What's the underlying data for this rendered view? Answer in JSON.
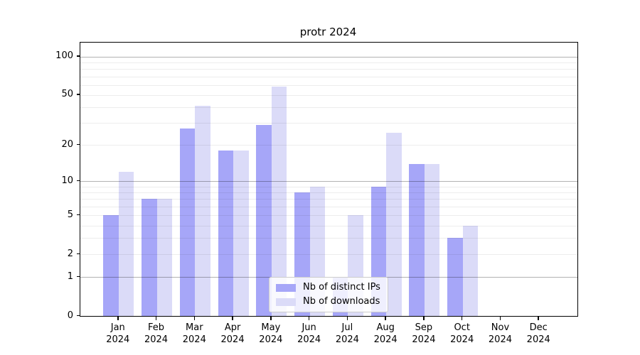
{
  "title": "protr 2024",
  "legend": {
    "items": [
      {
        "label": "Nb of distinct IPs",
        "color": "#a6a6f8"
      },
      {
        "label": "Nb of downloads",
        "color": "#dbdbf8"
      }
    ]
  },
  "chart_data": {
    "type": "bar",
    "title": "protr 2024",
    "categories": [
      "Jan",
      "Feb",
      "Mar",
      "Apr",
      "May",
      "Jun",
      "Jul",
      "Aug",
      "Sep",
      "Oct",
      "Nov",
      "Dec"
    ],
    "year": "2024",
    "series": [
      {
        "name": "Nb of distinct IPs",
        "color": "#a6a6f8",
        "values": [
          5,
          7,
          27,
          18,
          29,
          8,
          1,
          9,
          14,
          3,
          0,
          0
        ]
      },
      {
        "name": "Nb of downloads",
        "color": "#dbdbf8",
        "values": [
          12,
          7,
          41,
          18,
          58,
          9,
          5,
          25,
          14,
          4,
          0,
          0
        ]
      }
    ],
    "xlabel": "",
    "ylabel": "",
    "yscale": "log1p",
    "ylim": [
      0,
      128.5
    ],
    "ytick_values": [
      0,
      1,
      2,
      5,
      10,
      20,
      50,
      100
    ],
    "y_major_gridlines": [
      1,
      10,
      100
    ],
    "y_minor_gridlines": [
      2,
      3,
      4,
      5,
      6,
      7,
      8,
      9,
      20,
      30,
      40,
      50,
      60,
      70,
      80,
      90
    ],
    "grid": true,
    "legend_position": "lower center",
    "colors": {
      "major_grid": "rgba(0,0,0,0.30)",
      "minor_grid": "rgba(0,0,0,0.07)",
      "axis": "#000000"
    }
  }
}
